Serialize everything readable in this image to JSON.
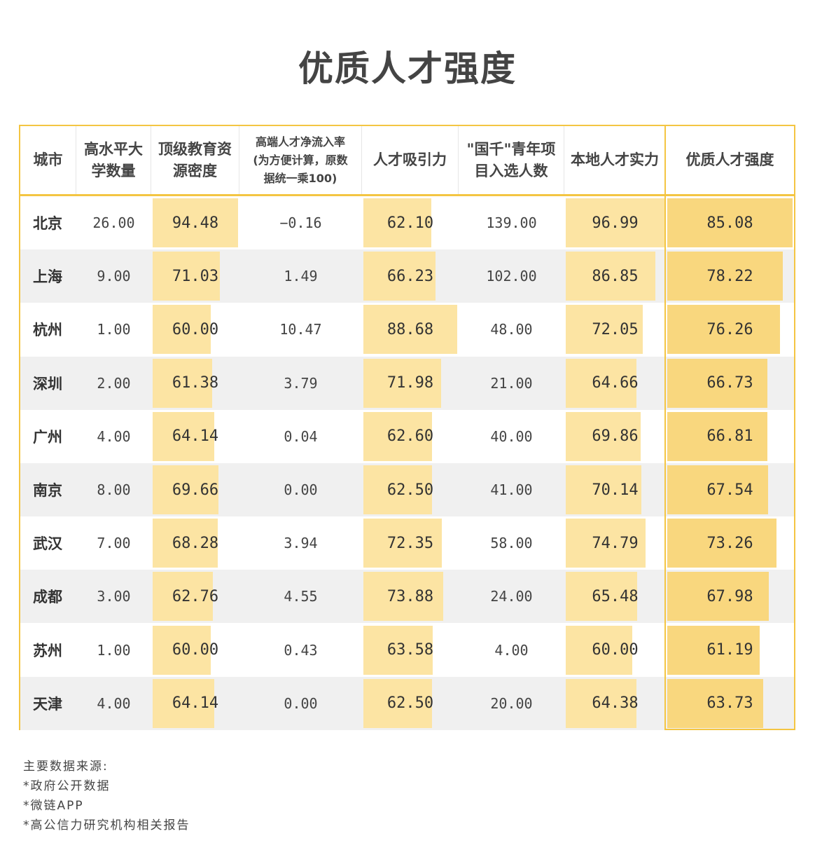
{
  "title": "优质人才强度",
  "chart_data": {
    "type": "table",
    "columns": [
      {
        "label": "城市",
        "kind": "city"
      },
      {
        "label": "高水平大\n学数量",
        "kind": "plain"
      },
      {
        "label": "顶级教育资\n源密度",
        "kind": "bar",
        "max": 94.48
      },
      {
        "label": "高端人才净流入率\n(为方便计算，原数\n据统一乘100)",
        "kind": "plain"
      },
      {
        "label": "人才吸引力",
        "kind": "bar",
        "max": 88.68
      },
      {
        "label": "\"国千\"青年项\n目入选人数",
        "kind": "plain"
      },
      {
        "label": "本地人才实力",
        "kind": "bar",
        "max": 96.99
      },
      {
        "label": "优质人才强度",
        "kind": "final",
        "max": 85.08
      }
    ],
    "rows": [
      [
        "北京",
        "26.00",
        "94.48",
        "−0.16",
        "62.10",
        "139.00",
        "96.99",
        "85.08"
      ],
      [
        "上海",
        "9.00",
        "71.03",
        "1.49",
        "66.23",
        "102.00",
        "86.85",
        "78.22"
      ],
      [
        "杭州",
        "1.00",
        "60.00",
        "10.47",
        "88.68",
        "48.00",
        "72.05",
        "76.26"
      ],
      [
        "深圳",
        "2.00",
        "61.38",
        "3.79",
        "71.98",
        "21.00",
        "64.66",
        "66.73"
      ],
      [
        "广州",
        "4.00",
        "64.14",
        "0.04",
        "62.60",
        "40.00",
        "69.86",
        "66.81"
      ],
      [
        "南京",
        "8.00",
        "69.66",
        "0.00",
        "62.50",
        "41.00",
        "70.14",
        "67.54"
      ],
      [
        "武汉",
        "7.00",
        "68.28",
        "3.94",
        "72.35",
        "58.00",
        "74.79",
        "73.26"
      ],
      [
        "成都",
        "3.00",
        "62.76",
        "4.55",
        "73.88",
        "24.00",
        "65.48",
        "67.98"
      ],
      [
        "苏州",
        "1.00",
        "60.00",
        "0.43",
        "63.58",
        "4.00",
        "60.00",
        "61.19"
      ],
      [
        "天津",
        "4.00",
        "64.14",
        "0.00",
        "62.50",
        "20.00",
        "64.38",
        "63.73"
      ]
    ],
    "bar_base": 40
  },
  "colors": {
    "accent_border": "#f4c542",
    "bar": "#fce4a3",
    "bar_final": "#f9d77e",
    "row_alt": "#f0f0f0"
  },
  "notes": {
    "heading": "主要数据来源:",
    "items": [
      "*政府公开数据",
      "*微链APP",
      "*高公信力研究机构相关报告"
    ]
  }
}
